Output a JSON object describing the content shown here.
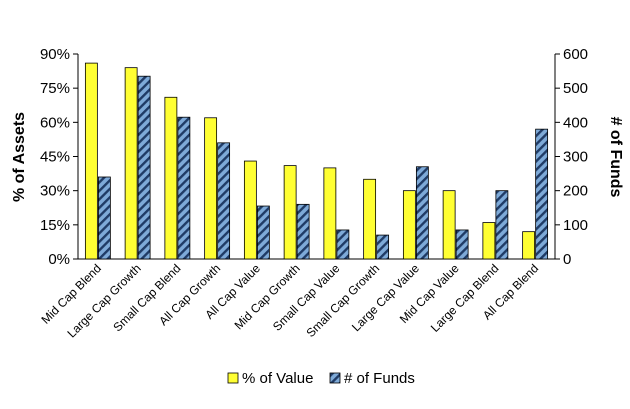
{
  "chart_data": {
    "type": "bar",
    "categories": [
      "Mid Cap Blend",
      "Large Cap Growth",
      "Small Cap Blend",
      "All Cap Growth",
      "All Cap Value",
      "Mid Cap Growth",
      "Small Cap Value",
      "Small Cap Growth",
      "Large Cap Value",
      "Mid Cap Value",
      "Large Cap Blend",
      "All Cap Blend"
    ],
    "series": [
      {
        "name": "% of Value",
        "axis": "left",
        "color": "#ffff33",
        "values": [
          86,
          84,
          71,
          62,
          43,
          41,
          40,
          35,
          30,
          30,
          16,
          12
        ]
      },
      {
        "name": "# of Funds",
        "axis": "right",
        "color": "#7eaad8",
        "hatch": "#1f3b66",
        "values": [
          240,
          535,
          415,
          340,
          155,
          160,
          85,
          70,
          270,
          85,
          200,
          380
        ]
      }
    ],
    "y_left": {
      "label": "% of Assets",
      "ticks": [
        "0%",
        "15%",
        "30%",
        "45%",
        "60%",
        "75%",
        "90%"
      ],
      "range": [
        0,
        90
      ]
    },
    "y_right": {
      "label": "# of Funds",
      "ticks": [
        "0",
        "100",
        "200",
        "300",
        "400",
        "500",
        "600"
      ],
      "range": [
        0,
        600
      ]
    },
    "legend": {
      "position": "bottom"
    },
    "grid": false
  }
}
